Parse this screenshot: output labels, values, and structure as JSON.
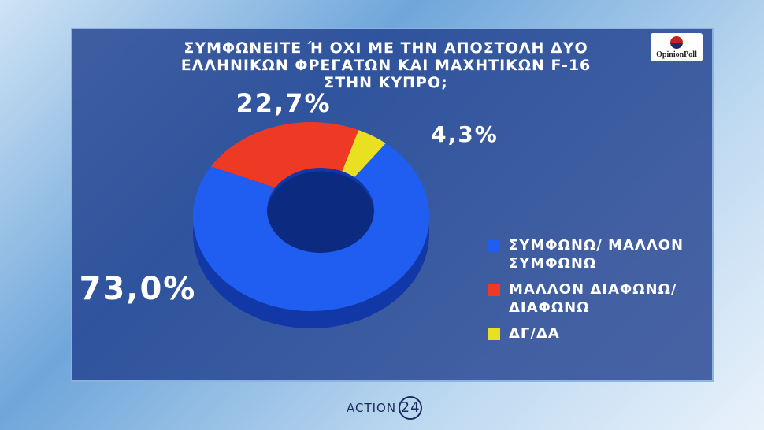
{
  "chart_data": {
    "type": "donut",
    "title": "ΣΥΜΦΩΝΕΙΤΕ Ή ΟΧΙ ΜΕ ΤΗΝ ΑΠΟΣΤΟΛΗ ΔΥΟ ΕΛΛΗΝΙΚΩΝ ΦΡΕΓΑΤΩΝ ΚΑΙ ΜΑΧΗΤΙΚΩΝ F-16 ΣΤΗΝ ΚΥΠΡΟ;",
    "categories": [
      "ΣΥΜΦΩΝΩ/ ΜΑΛΛΟΝ ΣΥΜΦΩΝΩ",
      "ΜΑΛΛΟΝ ΔΙΑΦΩΝΩ/ ΔΙΑΦΩΝΩ",
      "ΔΓ/ΔΑ"
    ],
    "values": [
      73.0,
      22.7,
      4.3
    ],
    "value_labels": [
      "73,0%",
      "22,7%",
      "4,3%"
    ],
    "colors": [
      "#1f5ef0",
      "#ee3a24",
      "#e8e020"
    ],
    "legend": "right"
  },
  "logo": "OpinionPoll",
  "channel": "ACTION",
  "channel_number": "24"
}
